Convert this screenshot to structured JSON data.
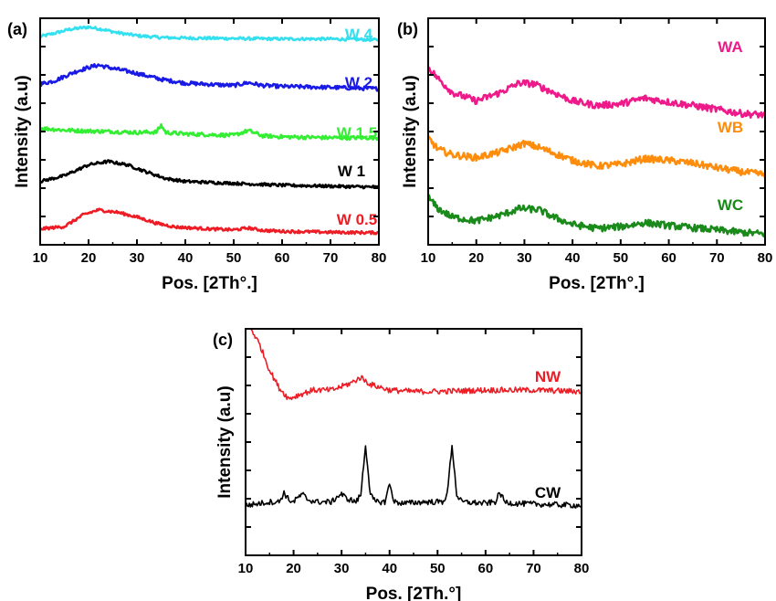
{
  "chart_data": [
    {
      "type": "line",
      "panel_label": "(a)",
      "xlabel": "Pos. [2Th°.]",
      "ylabel": "Intensity (a.u)",
      "xlim": [
        10,
        80
      ],
      "xticks": [
        10,
        20,
        30,
        40,
        50,
        60,
        70,
        80
      ],
      "grid": false,
      "legend": "labels-at-right-end-of-curves",
      "series": [
        {
          "name": "W 4",
          "color": "#33e0f0",
          "offset": 4,
          "noise": 0.03,
          "x": [
            10,
            13,
            16,
            20,
            23,
            26,
            30,
            35,
            40,
            50,
            60,
            70,
            80
          ],
          "y": [
            0.05,
            0.12,
            0.2,
            0.25,
            0.2,
            0.13,
            0.07,
            0.03,
            0.02,
            0.01,
            0.0,
            0.0,
            -0.02
          ]
        },
        {
          "name": "W 2",
          "color": "#1a1ae6",
          "offset": 3,
          "noise": 0.04,
          "x": [
            10,
            13,
            17,
            20,
            22,
            25,
            29,
            35,
            40,
            50,
            53,
            56,
            60,
            70,
            80
          ],
          "y": [
            0.05,
            0.12,
            0.3,
            0.4,
            0.45,
            0.38,
            0.3,
            0.15,
            0.07,
            0.02,
            0.08,
            0.02,
            0.0,
            -0.02,
            -0.05
          ]
        },
        {
          "name": "W 1.5",
          "color": "#33ee33",
          "offset": 2,
          "noise": 0.04,
          "x": [
            10,
            15,
            20,
            25,
            30,
            34,
            35,
            36,
            40,
            50,
            53,
            56,
            60,
            70,
            80
          ],
          "y": [
            0.12,
            0.08,
            0.06,
            0.05,
            0.03,
            0.04,
            0.18,
            0.03,
            0.0,
            -0.03,
            0.07,
            -0.04,
            -0.06,
            -0.08,
            -0.08
          ]
        },
        {
          "name": "W 1",
          "color": "#000000",
          "offset": 1,
          "noise": 0.03,
          "x": [
            10,
            15,
            20,
            24,
            28,
            32,
            36,
            40,
            50,
            60,
            70,
            80
          ],
          "y": [
            0.0,
            0.12,
            0.35,
            0.42,
            0.35,
            0.2,
            0.06,
            0.0,
            -0.04,
            -0.08,
            -0.1,
            -0.12
          ]
        },
        {
          "name": "W 0.5",
          "color": "#ee1c24",
          "offset": 0,
          "noise": 0.03,
          "x": [
            10,
            15,
            19,
            22,
            26,
            30,
            34,
            38,
            45,
            50,
            53,
            56,
            60,
            70,
            80
          ],
          "y": [
            0.0,
            0.05,
            0.3,
            0.4,
            0.35,
            0.25,
            0.12,
            0.04,
            0.0,
            -0.02,
            0.02,
            -0.03,
            -0.05,
            -0.07,
            -0.08
          ]
        }
      ]
    },
    {
      "type": "line",
      "panel_label": "(b)",
      "xlabel": "Pos. [2Th°.]",
      "ylabel": "Intensity (a.u)",
      "xlim": [
        10,
        80
      ],
      "xticks": [
        10,
        20,
        30,
        40,
        50,
        60,
        70,
        80
      ],
      "grid": false,
      "legend": "labels-at-right-end-of-curves",
      "series": [
        {
          "name": "WA",
          "color": "#ee1a8a",
          "offset": 2,
          "noise": 0.06,
          "x": [
            10,
            12,
            15,
            20,
            25,
            29,
            32,
            36,
            40,
            45,
            50,
            55,
            60,
            65,
            70,
            75,
            80
          ],
          "y": [
            0.9,
            0.7,
            0.45,
            0.3,
            0.45,
            0.62,
            0.6,
            0.45,
            0.3,
            0.22,
            0.25,
            0.35,
            0.28,
            0.22,
            0.15,
            0.08,
            0.05
          ]
        },
        {
          "name": "WB",
          "color": "#ff8c0a",
          "offset": 1,
          "noise": 0.06,
          "x": [
            10,
            12,
            15,
            20,
            25,
            30,
            33,
            37,
            40,
            45,
            50,
            55,
            60,
            65,
            70,
            75,
            80
          ],
          "y": [
            0.65,
            0.45,
            0.35,
            0.3,
            0.4,
            0.55,
            0.48,
            0.35,
            0.25,
            0.15,
            0.18,
            0.28,
            0.25,
            0.2,
            0.12,
            0.05,
            0.0
          ]
        },
        {
          "name": "WC",
          "color": "#1a8a1a",
          "offset": 0,
          "noise": 0.06,
          "x": [
            10,
            12,
            15,
            20,
            25,
            29,
            33,
            36,
            40,
            45,
            50,
            55,
            60,
            65,
            70,
            75,
            80
          ],
          "y": [
            0.6,
            0.4,
            0.25,
            0.18,
            0.28,
            0.4,
            0.38,
            0.25,
            0.12,
            0.05,
            0.08,
            0.15,
            0.1,
            0.06,
            0.02,
            -0.02,
            -0.05
          ]
        }
      ]
    },
    {
      "type": "line",
      "panel_label": "(c)",
      "xlabel": "Pos. [2Th.°]",
      "ylabel": "Intensity (a.u)",
      "xlim": [
        10,
        80
      ],
      "xticks": [
        10,
        20,
        30,
        40,
        50,
        60,
        70,
        80
      ],
      "grid": false,
      "legend": "labels-at-right-end-of-curves",
      "series": [
        {
          "name": "NW",
          "color": "#ee1c24",
          "offset": 1.5,
          "noise": 0.04,
          "x": [
            10,
            11,
            13,
            15,
            17,
            19,
            21,
            24,
            28,
            32,
            34,
            36,
            40,
            45,
            50,
            60,
            70,
            80
          ],
          "y": [
            1.1,
            1.0,
            0.75,
            0.4,
            0.15,
            0.0,
            0.05,
            0.12,
            0.12,
            0.22,
            0.3,
            0.2,
            0.12,
            0.1,
            0.1,
            0.12,
            0.12,
            0.1
          ]
        },
        {
          "name": "CW",
          "color": "#000000",
          "offset": 0,
          "noise": 0.04,
          "x": [
            10,
            15,
            17,
            18,
            19,
            20,
            21,
            22,
            23,
            25,
            28,
            29,
            30,
            31,
            33,
            34,
            35,
            36,
            37,
            39,
            40,
            41,
            43,
            47,
            51,
            52,
            53,
            54,
            55,
            60,
            62,
            63,
            64,
            66,
            70,
            80
          ],
          "y": [
            0.0,
            0.05,
            0.05,
            0.18,
            0.08,
            0.05,
            0.12,
            0.15,
            0.08,
            0.05,
            0.05,
            0.12,
            0.16,
            0.1,
            0.05,
            0.15,
            0.85,
            0.15,
            0.05,
            0.05,
            0.3,
            0.05,
            0.03,
            0.05,
            0.05,
            0.15,
            0.85,
            0.15,
            0.05,
            0.03,
            0.05,
            0.18,
            0.05,
            0.03,
            0.02,
            0.0
          ]
        }
      ]
    }
  ]
}
